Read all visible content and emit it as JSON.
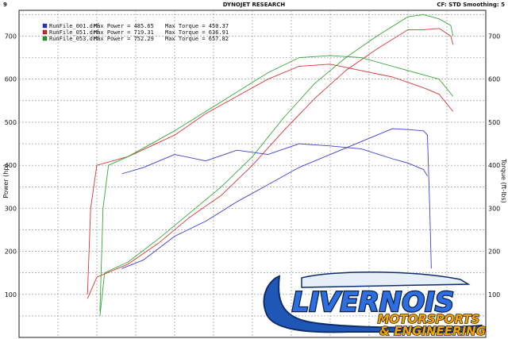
{
  "chart_data": {
    "type": "line",
    "title": "DYNOJET RESEARCH",
    "header_left": "9",
    "header_right": "CF: STD  Smoothing: 5",
    "ylabel_left": "Power (hp)",
    "ylabel_right": "Torque (ft-lbs)",
    "y_ticks_left": [
      "700",
      "600",
      "500",
      "400",
      "300",
      "200",
      "100"
    ],
    "y_ticks_right": [
      "700",
      "600",
      "500",
      "400",
      "300",
      "200",
      "100"
    ],
    "ylim": [
      0,
      760
    ],
    "xlim": [
      0,
      600
    ],
    "grid": true,
    "legend": [
      {
        "file": "RunFile_001.drf",
        "power_label": "Max Power = 485.65",
        "torque_label": "Max Torque = 450.37",
        "color": "#2a2ad0"
      },
      {
        "file": "RunFile_051.drf",
        "power_label": "Max Power = 719.31",
        "torque_label": "Max Torque = 636.91",
        "color": "#d82020"
      },
      {
        "file": "RunFile_053.drf",
        "power_label": "Max Power = 752.29",
        "torque_label": "Max Torque = 657.82",
        "color": "#22a022"
      }
    ],
    "series": [
      {
        "run": "RunFile_001.drf",
        "kind": "power",
        "color": "#2a2ad0",
        "points": [
          [
            132,
            160
          ],
          [
            160,
            180
          ],
          [
            200,
            235
          ],
          [
            240,
            270
          ],
          [
            280,
            315
          ],
          [
            320,
            355
          ],
          [
            360,
            395
          ],
          [
            400,
            425
          ],
          [
            440,
            455
          ],
          [
            480,
            485
          ],
          [
            500,
            483
          ],
          [
            520,
            480
          ],
          [
            525,
            470
          ],
          [
            528,
            300
          ],
          [
            530,
            160
          ]
        ]
      },
      {
        "run": "RunFile_001.drf",
        "kind": "torque",
        "color": "#2a2ad0",
        "points": [
          [
            132,
            380
          ],
          [
            160,
            395
          ],
          [
            200,
            425
          ],
          [
            240,
            410
          ],
          [
            280,
            435
          ],
          [
            320,
            425
          ],
          [
            360,
            450
          ],
          [
            400,
            445
          ],
          [
            440,
            438
          ],
          [
            480,
            415
          ],
          [
            500,
            405
          ],
          [
            520,
            390
          ],
          [
            525,
            375
          ]
        ]
      },
      {
        "run": "RunFile_051.drf",
        "kind": "power",
        "color": "#d82020",
        "points": [
          [
            88,
            90
          ],
          [
            100,
            140
          ],
          [
            140,
            170
          ],
          [
            180,
            220
          ],
          [
            220,
            280
          ],
          [
            260,
            330
          ],
          [
            300,
            400
          ],
          [
            340,
            480
          ],
          [
            380,
            555
          ],
          [
            420,
            620
          ],
          [
            460,
            670
          ],
          [
            500,
            715
          ],
          [
            520,
            715
          ],
          [
            540,
            718
          ],
          [
            555,
            700
          ],
          [
            558,
            680
          ]
        ]
      },
      {
        "run": "RunFile_051.drf",
        "kind": "torque",
        "color": "#d82020",
        "points": [
          [
            88,
            100
          ],
          [
            92,
            300
          ],
          [
            100,
            400
          ],
          [
            140,
            420
          ],
          [
            200,
            470
          ],
          [
            240,
            520
          ],
          [
            280,
            560
          ],
          [
            320,
            600
          ],
          [
            360,
            630
          ],
          [
            400,
            635
          ],
          [
            440,
            620
          ],
          [
            480,
            605
          ],
          [
            520,
            580
          ],
          [
            540,
            565
          ],
          [
            558,
            525
          ]
        ]
      },
      {
        "run": "RunFile_053.drf",
        "kind": "power",
        "color": "#22a022",
        "points": [
          [
            104,
            50
          ],
          [
            110,
            150
          ],
          [
            140,
            175
          ],
          [
            180,
            230
          ],
          [
            220,
            290
          ],
          [
            260,
            350
          ],
          [
            300,
            420
          ],
          [
            340,
            510
          ],
          [
            380,
            590
          ],
          [
            420,
            650
          ],
          [
            460,
            700
          ],
          [
            500,
            745
          ],
          [
            520,
            750
          ],
          [
            540,
            740
          ],
          [
            555,
            725
          ],
          [
            558,
            700
          ]
        ]
      },
      {
        "run": "RunFile_053.drf",
        "kind": "torque",
        "color": "#22a022",
        "points": [
          [
            104,
            60
          ],
          [
            108,
            300
          ],
          [
            115,
            400
          ],
          [
            140,
            420
          ],
          [
            200,
            480
          ],
          [
            240,
            525
          ],
          [
            280,
            570
          ],
          [
            320,
            615
          ],
          [
            360,
            650
          ],
          [
            400,
            655
          ],
          [
            440,
            650
          ],
          [
            480,
            630
          ],
          [
            520,
            610
          ],
          [
            540,
            600
          ],
          [
            558,
            560
          ]
        ]
      }
    ]
  },
  "logo": {
    "name": "LIVERNOIS",
    "line1": "MOTORSPORTS",
    "line2": "& ENGINEERING"
  }
}
